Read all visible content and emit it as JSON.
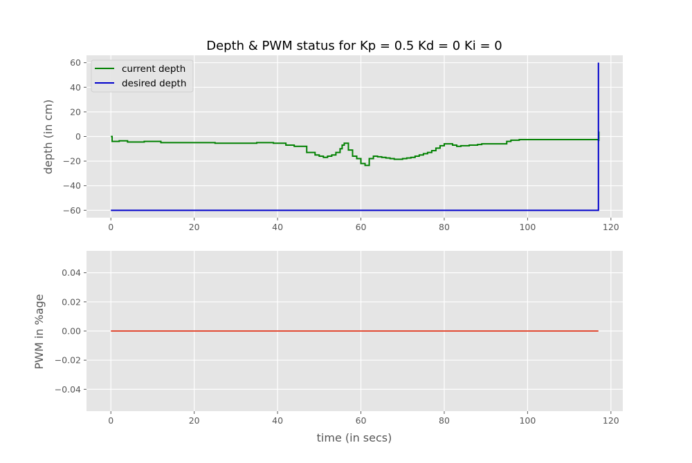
{
  "chart_data": [
    {
      "type": "line",
      "title": "Depth & PWM status for Kp = 0.5 Kd = 0 Ki = 0",
      "xlabel": "",
      "ylabel": "depth (in cm)",
      "xlim": [
        -5.85,
        122.85
      ],
      "ylim": [
        -66,
        66
      ],
      "xticks": [
        0,
        20,
        40,
        60,
        80,
        100,
        120
      ],
      "xtick_labels": [
        "0",
        "20",
        "40",
        "60",
        "80",
        "100",
        "120"
      ],
      "yticks": [
        -60,
        -40,
        -20,
        0,
        20,
        40,
        60
      ],
      "ytick_labels": [
        "−60",
        "−40",
        "−20",
        "0",
        "20",
        "40",
        "60"
      ],
      "grid": true,
      "legend_position": "top-left",
      "series": [
        {
          "name": "current depth",
          "color": "#008000",
          "step": true,
          "x": [
            0,
            0.3,
            2,
            4,
            8,
            12,
            17,
            25,
            30,
            35,
            39,
            42,
            44,
            46,
            47,
            49,
            50,
            51,
            52,
            53,
            54,
            55,
            55.5,
            56,
            57,
            58,
            59,
            60,
            61,
            62,
            63,
            64,
            65,
            66,
            67,
            68,
            69,
            70,
            71,
            72,
            73,
            74,
            75,
            76,
            77,
            78,
            79,
            80,
            82,
            83,
            84,
            86,
            88,
            89,
            91,
            95,
            96,
            98,
            100,
            117,
            117.1
          ],
          "y": [
            0,
            -4,
            -3.5,
            -4.5,
            -4,
            -5,
            -5,
            -5.5,
            -5.5,
            -5,
            -5.5,
            -7,
            -8,
            -8,
            -13,
            -15,
            -16,
            -17,
            -16,
            -15,
            -13,
            -10,
            -7,
            -5.5,
            -11,
            -16,
            -18,
            -22,
            -23.5,
            -18,
            -16,
            -16.5,
            -17,
            -17.5,
            -18,
            -18.5,
            -18.5,
            -18,
            -17.5,
            -17,
            -16,
            -15,
            -14,
            -13,
            -11.5,
            -9.5,
            -7.5,
            -6,
            -7,
            -8,
            -7.5,
            -7,
            -6.5,
            -6,
            -6,
            -4,
            -3,
            -2.5,
            -2.5,
            -3,
            4
          ]
        },
        {
          "name": "desired depth",
          "color": "#0000cc",
          "step": false,
          "x": [
            0,
            117,
            117
          ],
          "y": [
            -60,
            -60,
            60
          ]
        }
      ]
    },
    {
      "type": "line",
      "title": "",
      "xlabel": "time (in secs)",
      "ylabel": "PWM in %age",
      "xlim": [
        -5.85,
        122.85
      ],
      "ylim": [
        -0.055,
        0.055
      ],
      "xticks": [
        0,
        20,
        40,
        60,
        80,
        100,
        120
      ],
      "xtick_labels": [
        "0",
        "20",
        "40",
        "60",
        "80",
        "100",
        "120"
      ],
      "yticks": [
        -0.04,
        -0.02,
        0,
        0.02,
        0.04
      ],
      "ytick_labels": [
        "−0.04",
        "−0.02",
        "0.00",
        "0.02",
        "0.04"
      ],
      "grid": true,
      "series": [
        {
          "color": "#e24a33",
          "step": false,
          "x": [
            0,
            117
          ],
          "y": [
            0,
            0
          ]
        }
      ]
    }
  ]
}
